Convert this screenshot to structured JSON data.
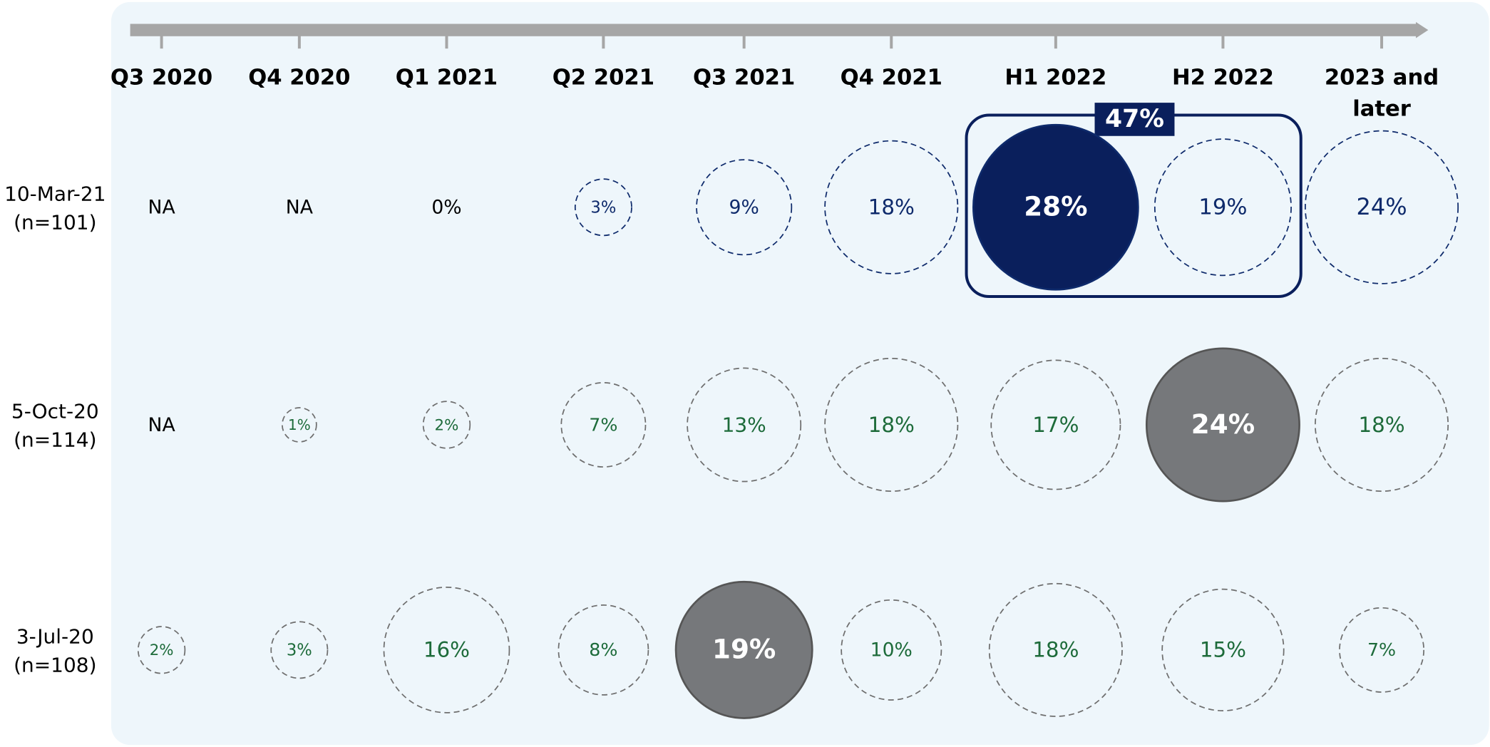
{
  "chart_data": {
    "type": "bubble",
    "categories": [
      "Q3 2020",
      "Q4 2020",
      "Q1 2021",
      "Q2 2021",
      "Q3 2021",
      "Q4 2021",
      "H1 2022",
      "H2 2022",
      "2023 and later"
    ],
    "series": [
      {
        "name": "10-Mar-21 (n=101)",
        "color": "#0e2a6b",
        "highlight": 6,
        "highlight_color": "#0a1f5c",
        "values": [
          null,
          null,
          0,
          3,
          9,
          18,
          28,
          19,
          24
        ],
        "value_labels": [
          "NA",
          "NA",
          "0%",
          "3%",
          "9%",
          "18%",
          "28%",
          "19%",
          "24%"
        ]
      },
      {
        "name": "5-Oct-20 (n=114)",
        "color": "#1d6b3a",
        "highlight": 7,
        "highlight_color": "#76787b",
        "values": [
          null,
          1,
          2,
          7,
          13,
          18,
          17,
          24,
          18
        ],
        "value_labels": [
          "NA",
          "1%",
          "2%",
          "7%",
          "13%",
          "18%",
          "17%",
          "24%",
          "18%"
        ]
      },
      {
        "name": "3-Jul-20 (n=108)",
        "color": "#1d6b3a",
        "highlight": 4,
        "highlight_color": "#76787b",
        "values": [
          2,
          3,
          16,
          8,
          19,
          10,
          18,
          15,
          7
        ],
        "value_labels": [
          "2%",
          "3%",
          "16%",
          "8%",
          "19%",
          "10%",
          "18%",
          "15%",
          "7%"
        ]
      }
    ],
    "annotations": [
      {
        "text": "47%",
        "series": 0,
        "from": 6,
        "to": 7,
        "color": "#0a1f5c"
      }
    ]
  }
}
